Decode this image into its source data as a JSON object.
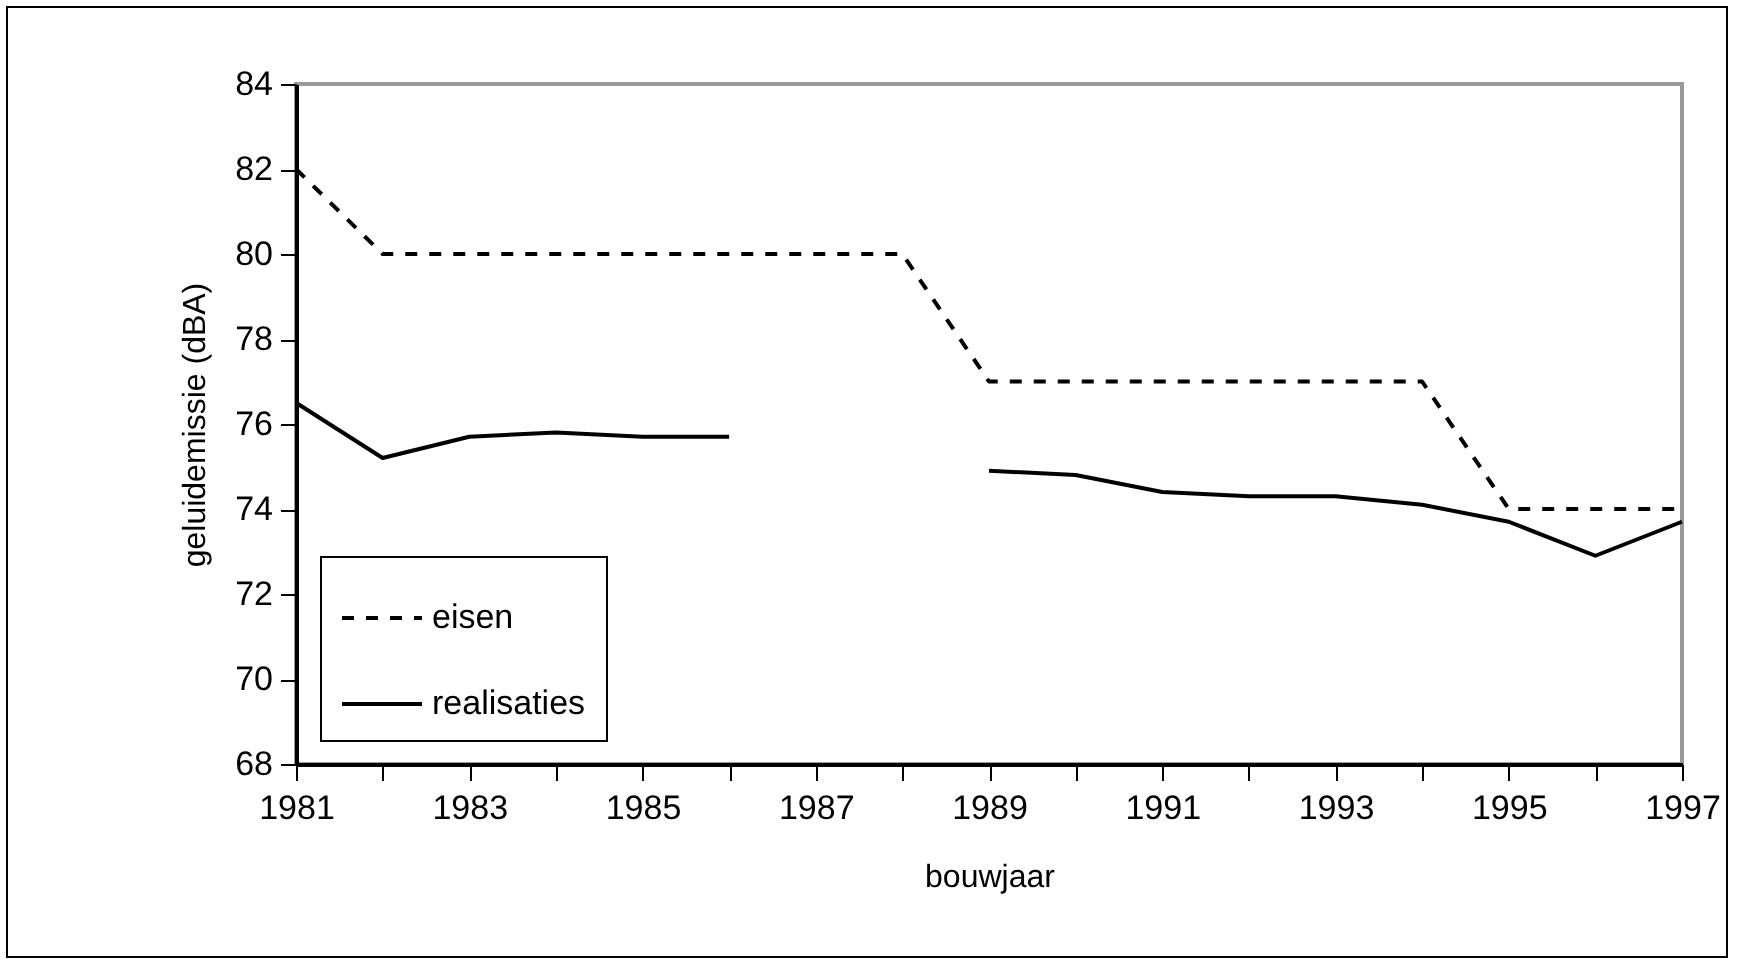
{
  "chart_data": {
    "type": "line",
    "xlabel": "bouwjaar",
    "ylabel": "geluidemissie (dBA)",
    "x": [
      1981,
      1982,
      1983,
      1984,
      1985,
      1986,
      1987,
      1988,
      1989,
      1990,
      1991,
      1992,
      1993,
      1994,
      1995,
      1996,
      1997
    ],
    "series": [
      {
        "name": "eisen",
        "color": "#000000",
        "line_style": "dashed",
        "values": [
          82,
          80,
          80,
          80,
          80,
          80,
          80,
          80,
          77,
          77,
          77,
          77,
          77,
          77,
          74,
          74,
          74
        ]
      },
      {
        "name": "realisaties",
        "color": "#000000",
        "line_style": "solid",
        "values": [
          76.5,
          75.2,
          75.7,
          75.8,
          75.7,
          75.7,
          null,
          null,
          74.9,
          74.8,
          74.4,
          74.3,
          74.3,
          74.1,
          73.7,
          72.9,
          73.7
        ]
      }
    ],
    "xlim": [
      1981,
      1997
    ],
    "xticks": [
      1981,
      {
        "value": 1982,
        "label": null
      },
      1983,
      {
        "value": 1984,
        "label": null
      },
      1985,
      {
        "value": 1986,
        "label": null
      },
      1987,
      {
        "value": 1988,
        "label": null
      },
      1989,
      {
        "value": 1990,
        "label": null
      },
      1991,
      {
        "value": 1992,
        "label": null
      },
      1993,
      {
        "value": 1994,
        "label": null
      },
      1995,
      {
        "value": 1996,
        "label": null
      },
      1997
    ],
    "ylim": [
      68,
      84
    ],
    "yticks": [
      68,
      70,
      72,
      74,
      76,
      78,
      80,
      82,
      84
    ],
    "grid": false,
    "legend": "bottom left",
    "marker": "none"
  }
}
